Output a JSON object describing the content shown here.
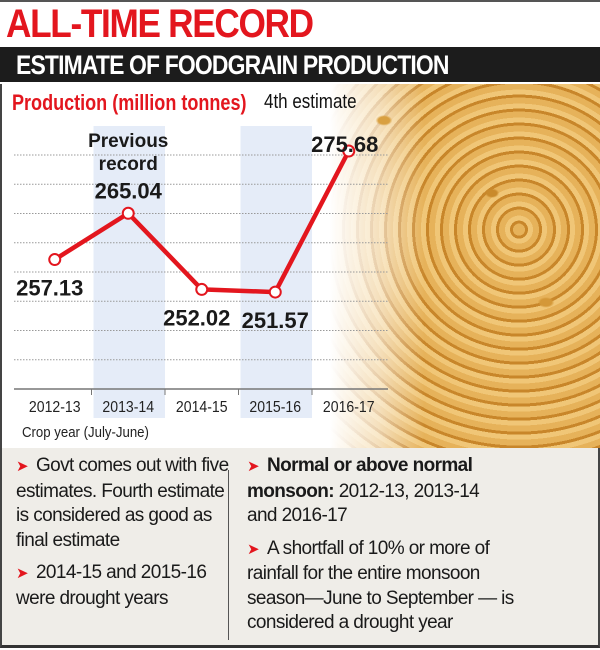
{
  "header": {
    "title": "ALL-TIME RECORD",
    "banner": "ESTIMATE OF FOODGRAIN PRODUCTION"
  },
  "chart_data": {
    "type": "line",
    "title": "Production (million tonnes)",
    "xlabel": "Crop year (July-June)",
    "categories": [
      "2012-13",
      "2013-14",
      "2014-15",
      "2015-16",
      "2016-17"
    ],
    "values": [
      257.13,
      265.04,
      252.02,
      251.57,
      275.68
    ],
    "value_labels": [
      "257.13",
      "265.04",
      "252.02",
      "251.57",
      "275.68"
    ],
    "highlighted_categories": [
      "2013-14",
      "2015-16"
    ],
    "annotations": [
      {
        "category": "2013-14",
        "text_line1": "Previous",
        "text_line2": "record"
      },
      {
        "category": "2016-17",
        "text": "4th estimate"
      }
    ],
    "ylim": [
      235,
      280
    ],
    "grid": true,
    "colors": {
      "line": "#e3161e",
      "highlight": "#e5ecf8"
    }
  },
  "notes": {
    "left": [
      {
        "text": "Govt comes out with five estimates. Fourth estimate is considered as good as final estimate"
      },
      {
        "text": "2014-15 and 2015-16 were drought years"
      }
    ],
    "right": [
      {
        "bold": "Normal or above normal monsoon:",
        "text": " 2012-13, 2013-14 and 2016-17"
      },
      {
        "text": "A shortfall of 10% or more of rainfall for the entire monsoon season—June to September — is considered a drought year"
      }
    ],
    "bullet_icon": "red-arrowhead"
  }
}
